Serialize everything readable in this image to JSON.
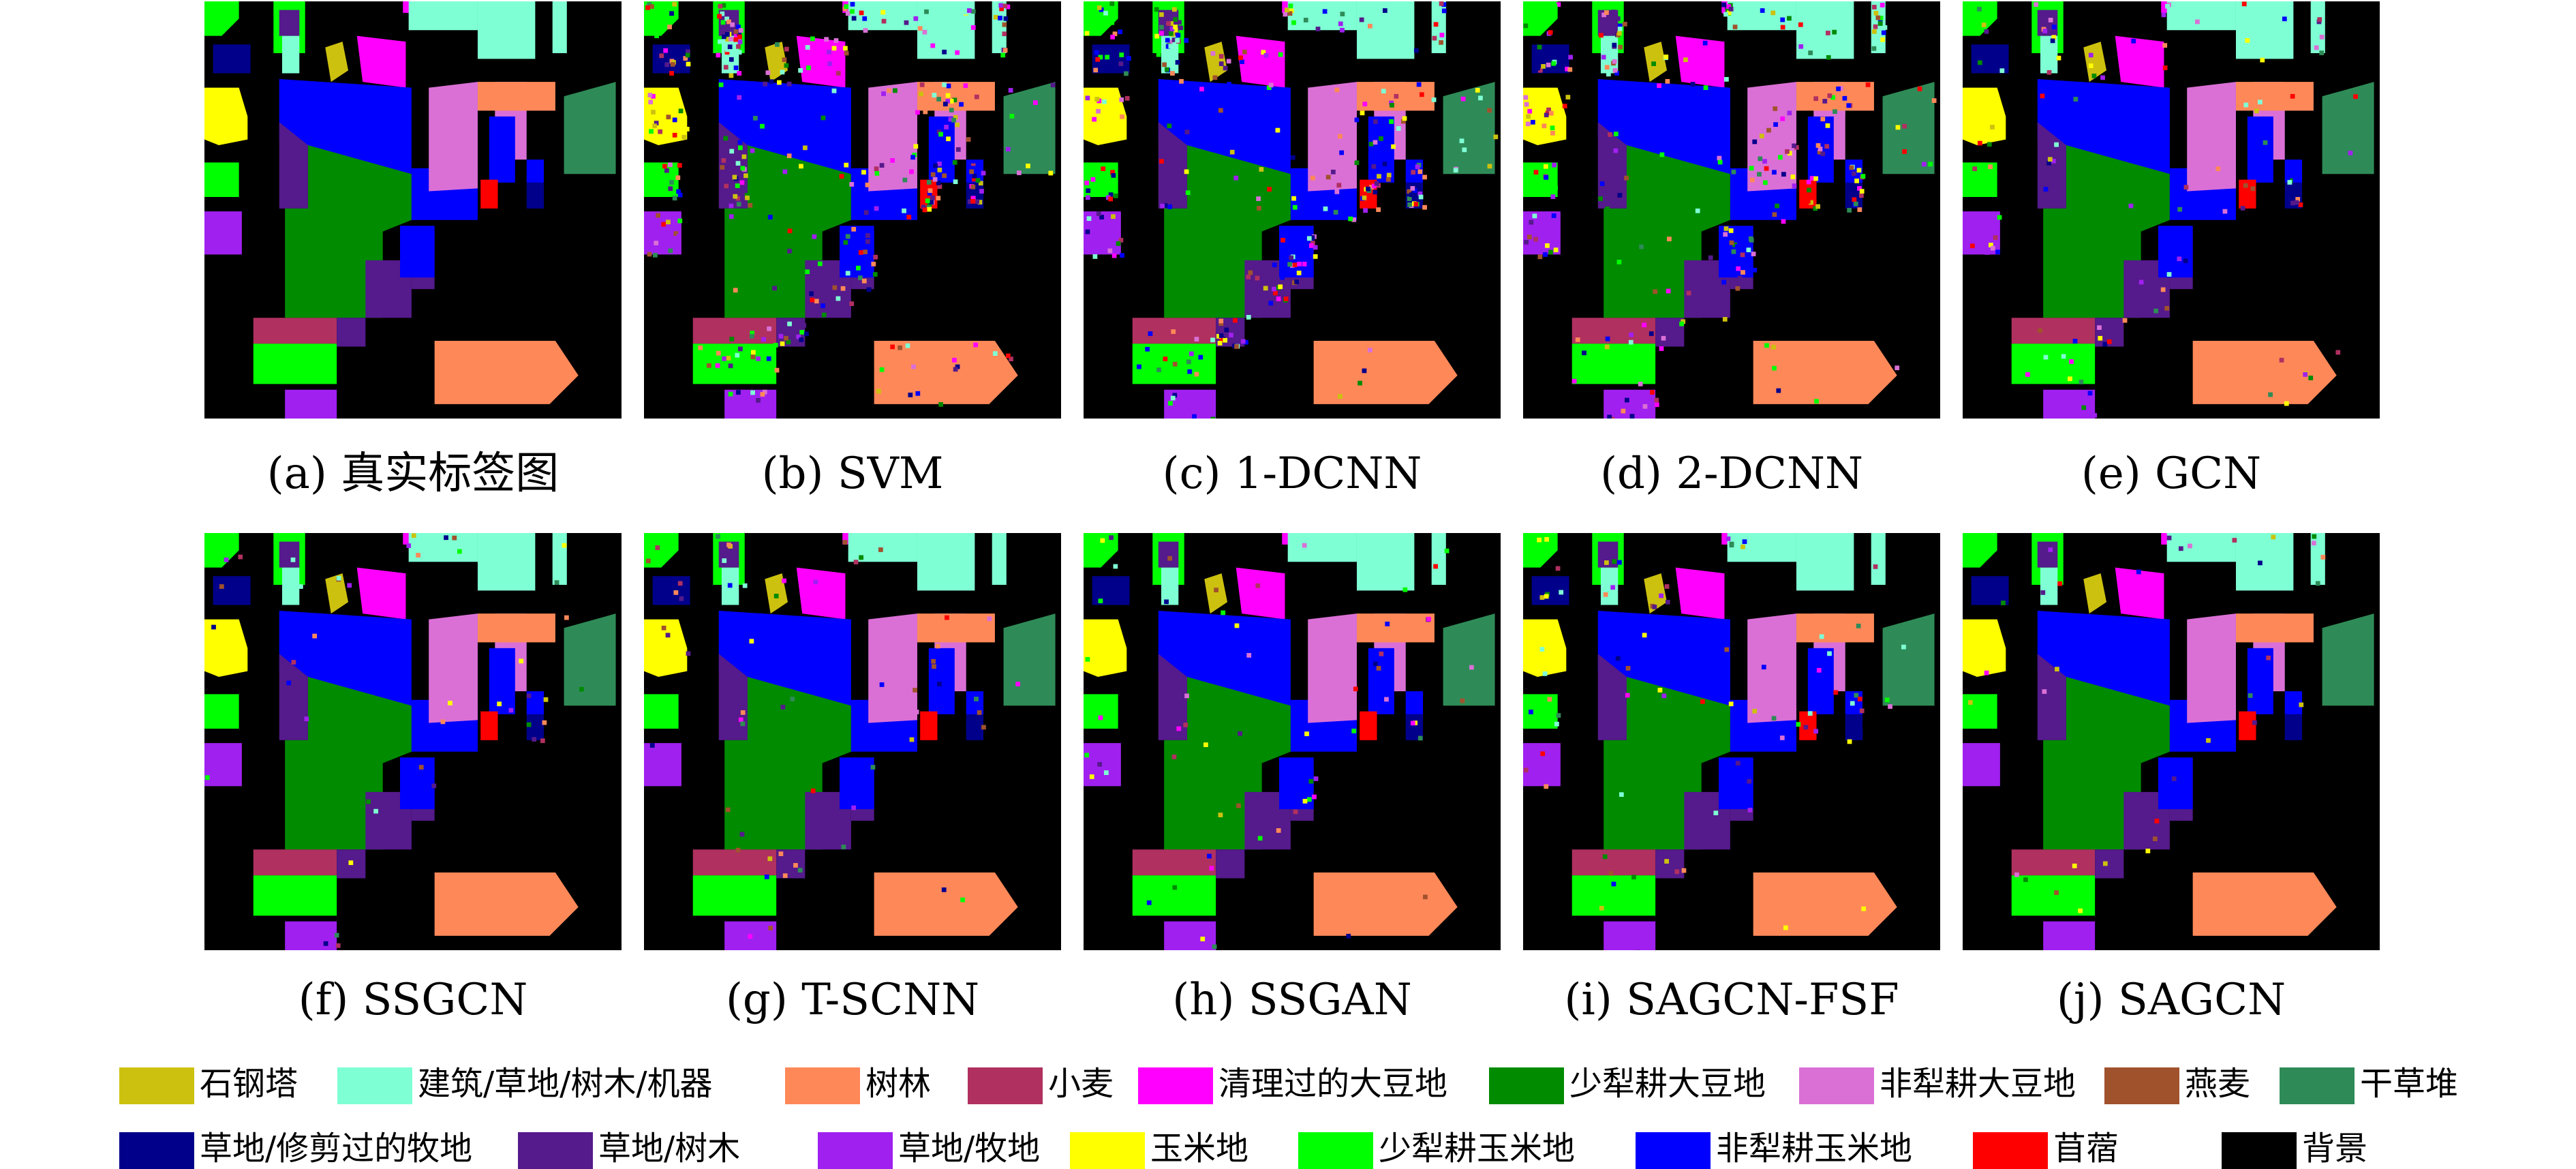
{
  "panels": [
    {
      "caption": "(a) 真实标签图",
      "noise": 0
    },
    {
      "caption": "(b) SVM",
      "noise": 0.42
    },
    {
      "caption": "(c) 1-DCNN",
      "noise": 0.34
    },
    {
      "caption": "(d) 2-DCNN",
      "noise": 0.3
    },
    {
      "caption": "(e) GCN",
      "noise": 0.12
    },
    {
      "caption": "(f) SSGCN",
      "noise": 0.05
    },
    {
      "caption": "(g) T-SCNN",
      "noise": 0.07
    },
    {
      "caption": "(h) SSGAN",
      "noise": 0.07
    },
    {
      "caption": "(i) SAGCN-FSF",
      "noise": 0.09
    },
    {
      "caption": "(j) SAGCN",
      "noise": 0.04
    }
  ],
  "legend": [
    {
      "label": "石钢塔",
      "color": "#cdc10f"
    },
    {
      "label": "建筑/草地/树木/机器",
      "color": "#7fffd4"
    },
    {
      "label": "树林",
      "color": "#ff8859"
    },
    {
      "label": "小麦",
      "color": "#b03060"
    },
    {
      "label": "清理过的大豆地",
      "color": "#ff00ff"
    },
    {
      "label": "少犁耕大豆地",
      "color": "#008b00"
    },
    {
      "label": "非犁耕大豆地",
      "color": "#da70d6"
    },
    {
      "label": "燕麦",
      "color": "#a0522d"
    },
    {
      "label": "干草堆",
      "color": "#2e8b57"
    },
    {
      "label": "草地/修剪过的牧地",
      "color": "#00008b"
    },
    {
      "label": "草地/树木",
      "color": "#551a8b"
    },
    {
      "label": "草地/牧地",
      "color": "#a020f0"
    },
    {
      "label": "玉米地",
      "color": "#ffff00"
    },
    {
      "label": "少犁耕玉米地",
      "color": "#00ff00"
    },
    {
      "label": "非犁耕玉米地",
      "color": "#0000ff"
    },
    {
      "label": "苜蓿",
      "color": "#ff0000"
    },
    {
      "label": "背景",
      "color": "#000000"
    }
  ]
}
